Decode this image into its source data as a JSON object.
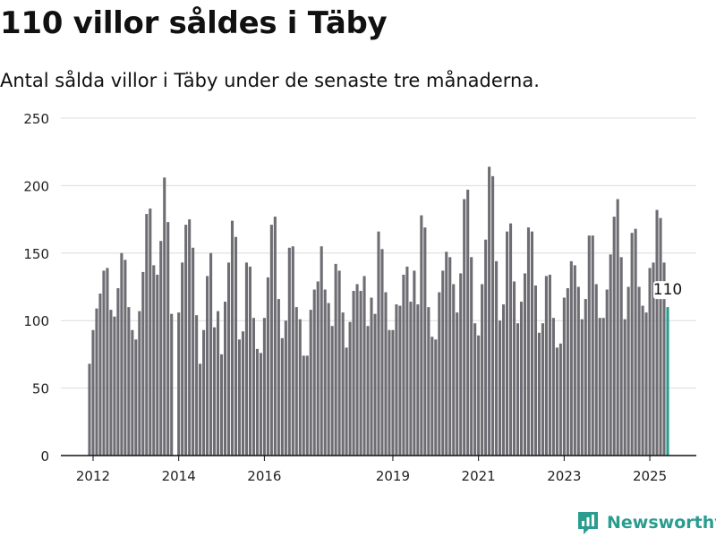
{
  "header": {
    "title": "110 villor såldes i Täby",
    "subtitle": "Antal sålda villor i Täby under de senaste tre månaderna."
  },
  "brand": {
    "name": "Newsworthy",
    "logo_icon": "bar-chart-logo-icon",
    "color": "#2a9d8f"
  },
  "chart_data": {
    "type": "bar",
    "title": "110 villor såldes i Täby",
    "subtitle": "Antal sålda villor i Täby under de senaste tre månaderna.",
    "xlabel": "",
    "ylabel": "",
    "ylim": [
      0,
      250
    ],
    "yticks": [
      0,
      50,
      100,
      150,
      200,
      250
    ],
    "xticks": [
      {
        "label": "2012",
        "month": "2012-01"
      },
      {
        "label": "2014",
        "month": "2014-01"
      },
      {
        "label": "2016",
        "month": "2016-01"
      },
      {
        "label": "2019",
        "month": "2019-01"
      },
      {
        "label": "2021",
        "month": "2021-01"
      },
      {
        "label": "2023",
        "month": "2023-01"
      },
      {
        "label": "2025",
        "month": "2025-01"
      }
    ],
    "grid": true,
    "legend": "none",
    "bar_color": "#6e6d73",
    "highlight_color": "#2a9d8f",
    "highlight_label": "110",
    "series": [
      {
        "start": "2011-12",
        "values": [
          68,
          93,
          109,
          120,
          137,
          139,
          108,
          103,
          124,
          150,
          145,
          110,
          93,
          86,
          107,
          136,
          179,
          183,
          141,
          134,
          159,
          206,
          173,
          105,
          0,
          106,
          143,
          171,
          175,
          154,
          104,
          68,
          93,
          133,
          150,
          95,
          107,
          75,
          114,
          143,
          174,
          162,
          86,
          92,
          143,
          140,
          102,
          79,
          76,
          102,
          132,
          171,
          177,
          116,
          87,
          100,
          154,
          155,
          110,
          101,
          74,
          74,
          108,
          123,
          129,
          155,
          123,
          113,
          96,
          142,
          137,
          106,
          80,
          99,
          122,
          127,
          122,
          133,
          96,
          117,
          105,
          166,
          153,
          121,
          93,
          93,
          112,
          111,
          134,
          140,
          114,
          137,
          112,
          178,
          169,
          110,
          88,
          86,
          121,
          137,
          151,
          147,
          127,
          106,
          135,
          190,
          197,
          147,
          98,
          89,
          127,
          160,
          214,
          207,
          144,
          100,
          112,
          166,
          172,
          129,
          98,
          114,
          135,
          169,
          166,
          126,
          91,
          98,
          133,
          134,
          102,
          80,
          83,
          117,
          124,
          144,
          141,
          125,
          101,
          116,
          163,
          163,
          127,
          102,
          102,
          123,
          149,
          177,
          190,
          147,
          101,
          125,
          165,
          168,
          125,
          111,
          106,
          139,
          143,
          182,
          176,
          143,
          110
        ]
      }
    ]
  }
}
